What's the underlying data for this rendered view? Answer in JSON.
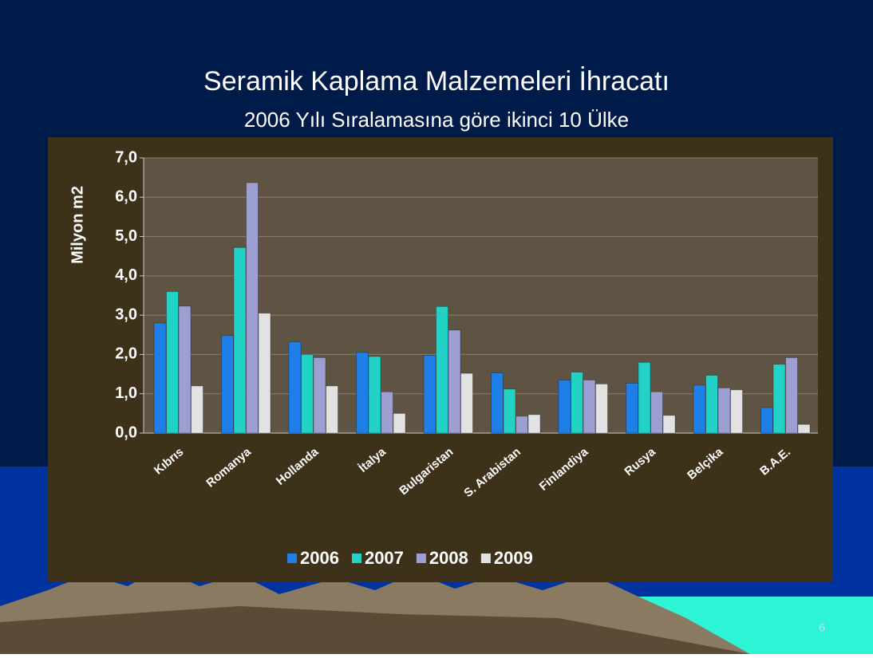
{
  "chart_data": {
    "type": "bar",
    "title": "Seramik Kaplama Malzemeleri İhracatı",
    "subtitle": "2006 Yılı Sıralamasına göre ikinci 10 Ülke",
    "y_label": "Milyon m2",
    "page_number": "6",
    "categories": [
      "Kıbrıs",
      "Romanya",
      "Hollanda",
      "İtalya",
      "Bulgaristan",
      "S. Arabistan",
      "Finlandiya",
      "Rusya",
      "Belçika",
      "B.A.E."
    ],
    "series": [
      {
        "name": "2006",
        "color": "#1f7fe8",
        "values": [
          2.8,
          2.48,
          2.32,
          2.05,
          1.98,
          1.53,
          1.35,
          1.27,
          1.22,
          0.65
        ]
      },
      {
        "name": "2007",
        "color": "#22d2c6",
        "values": [
          3.6,
          4.72,
          2.0,
          1.95,
          3.22,
          1.12,
          1.55,
          1.8,
          1.47,
          1.75
        ]
      },
      {
        "name": "2008",
        "color": "#9d9fd2",
        "values": [
          3.23,
          6.37,
          1.92,
          1.05,
          2.62,
          0.43,
          1.35,
          1.05,
          1.15,
          1.92
        ]
      },
      {
        "name": "2009",
        "color": "#e2e2e2",
        "values": [
          1.2,
          3.05,
          1.2,
          0.5,
          1.52,
          0.47,
          1.25,
          0.45,
          1.1,
          0.22
        ]
      }
    ],
    "ylim": [
      0,
      7
    ],
    "yticks": [
      {
        "value": 0,
        "label": "0,0"
      },
      {
        "value": 1,
        "label": "1,0"
      },
      {
        "value": 2,
        "label": "2,0"
      },
      {
        "value": 3,
        "label": "3,0"
      },
      {
        "value": 4,
        "label": "4,0"
      },
      {
        "value": 5,
        "label": "5,0"
      },
      {
        "value": 6,
        "label": "6,0"
      },
      {
        "value": 7,
        "label": "7,0"
      }
    ],
    "grid": true,
    "legend": "bottom"
  }
}
